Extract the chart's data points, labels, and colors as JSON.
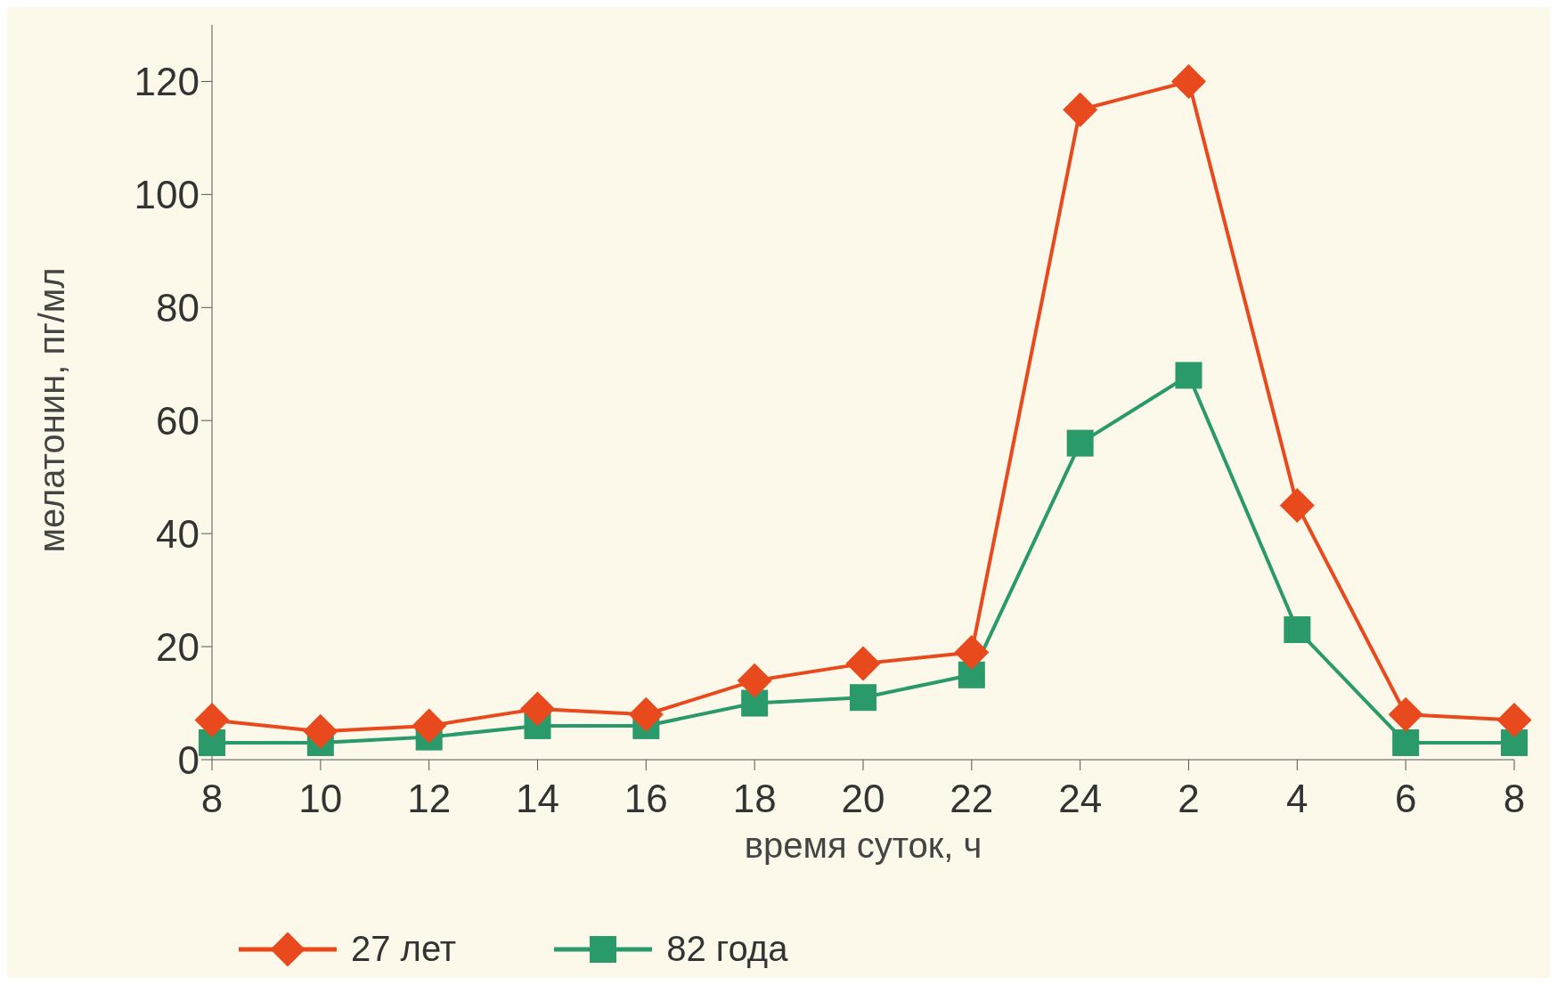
{
  "chart_data": {
    "type": "line",
    "xlabel": "время суток, ч",
    "ylabel": "мелатонин, пг/мл",
    "categories": [
      "8",
      "10",
      "12",
      "14",
      "16",
      "18",
      "20",
      "22",
      "24",
      "2",
      "4",
      "6",
      "8"
    ],
    "ylim": [
      0,
      130
    ],
    "yticks": [
      0,
      20,
      40,
      60,
      80,
      100,
      120
    ],
    "grid": false,
    "legend": "bottom left",
    "line_style": "solid",
    "series": [
      {
        "name": "27 лет",
        "color": "#e8491d",
        "marker": "diamond",
        "values": [
          7,
          5,
          6,
          9,
          8,
          14,
          17,
          19,
          115,
          120,
          45,
          8,
          7
        ]
      },
      {
        "name": "82 года",
        "color": "#2a9a6b",
        "marker": "square",
        "values": [
          3,
          3,
          4,
          6,
          6,
          10,
          11,
          15,
          56,
          68,
          23,
          3,
          3
        ]
      }
    ]
  }
}
